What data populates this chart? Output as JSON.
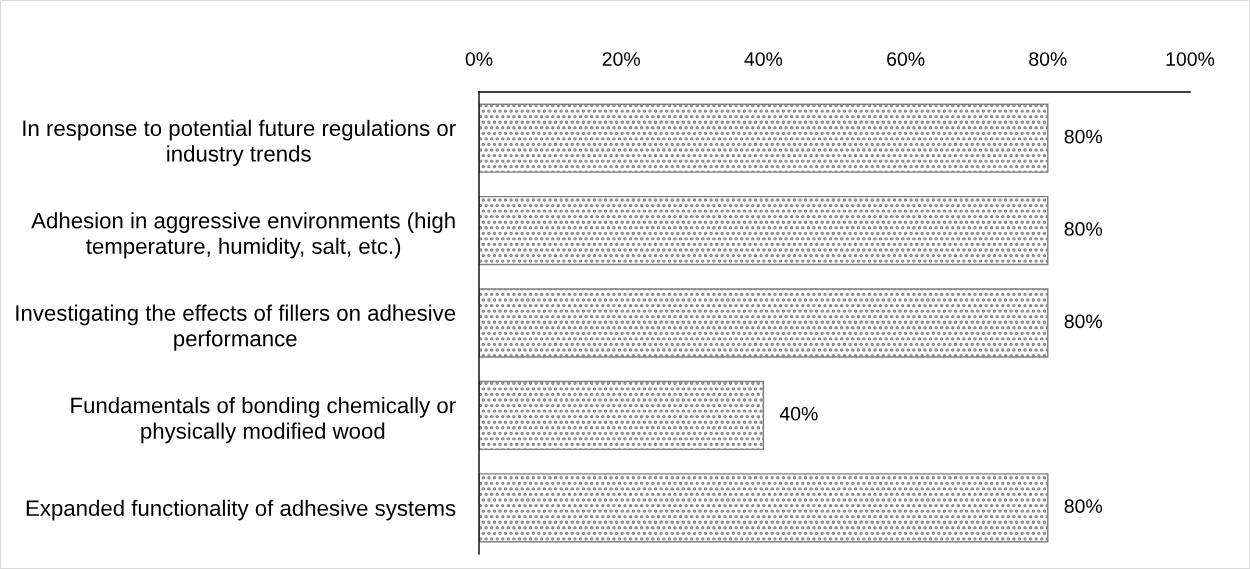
{
  "chart_data": {
    "type": "bar",
    "orientation": "horizontal",
    "categories": [
      "In response to potential future regulations or\nindustry trends",
      "Adhesion in aggressive environments (high\ntemperature, humidity, salt, etc.)",
      "Investigating the effects of fillers on adhesive\nperformance",
      "Fundamentals of bonding chemically or\nphysically modified wood",
      "Expanded functionality of adhesive systems"
    ],
    "values": [
      80,
      80,
      80,
      40,
      80
    ],
    "value_labels": [
      "80%",
      "80%",
      "80%",
      "40%",
      "80%"
    ],
    "color": "#808080",
    "xlim": [
      0,
      100
    ],
    "xticks": [
      {
        "value": 0,
        "label": "0%"
      },
      {
        "value": 20,
        "label": "20%"
      },
      {
        "value": 40,
        "label": "40%"
      },
      {
        "value": 60,
        "label": "60%"
      },
      {
        "value": 80,
        "label": "80%"
      },
      {
        "value": 100,
        "label": "100%"
      }
    ],
    "grid": false,
    "legend": false
  }
}
